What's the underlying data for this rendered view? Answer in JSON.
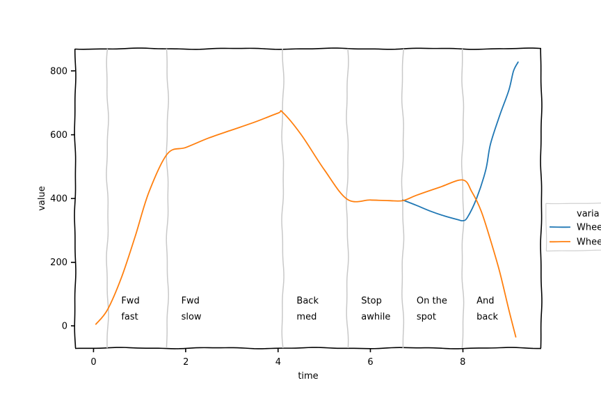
{
  "chart_data": {
    "type": "line",
    "title": "",
    "xlabel": "time",
    "ylabel": "value",
    "xlim": [
      -0.4,
      9.7
    ],
    "ylim": [
      -70,
      870
    ],
    "xticks": [
      0,
      2,
      4,
      6,
      8
    ],
    "xtick_labels": [
      "0",
      "2",
      "4",
      "6",
      "8"
    ],
    "yticks": [
      0,
      200,
      400,
      600,
      800
    ],
    "ytick_labels": [
      "0",
      "200",
      "400",
      "600",
      "800"
    ],
    "grid": false,
    "legend": {
      "placement": "right",
      "title": "varia",
      "entries": [
        "Whee",
        "Whee"
      ]
    },
    "series": [
      {
        "name": "Whee",
        "color": "#1f77b4",
        "x": [
          6.7,
          7.0,
          7.3,
          7.6,
          7.9,
          8.0,
          8.1,
          8.3,
          8.5,
          8.6,
          8.8,
          9.0,
          9.1,
          9.2
        ],
        "y": [
          395,
          378,
          360,
          345,
          333,
          330,
          340,
          400,
          490,
          570,
          660,
          740,
          800,
          828
        ]
      },
      {
        "name": "Whee",
        "color": "#ff7f0e",
        "x": [
          0.05,
          0.3,
          0.6,
          0.9,
          1.2,
          1.6,
          2.0,
          2.5,
          3.0,
          3.5,
          4.0,
          4.1,
          4.5,
          5.0,
          5.5,
          6.0,
          6.4,
          6.7,
          7.0,
          7.5,
          8.0,
          8.2,
          8.4,
          8.6,
          8.8,
          9.0,
          9.15
        ],
        "y": [
          5,
          50,
          150,
          280,
          420,
          540,
          560,
          590,
          615,
          640,
          668,
          670,
          600,
          490,
          397,
          395,
          393,
          393,
          410,
          435,
          458,
          420,
          360,
          270,
          170,
          50,
          -35
        ]
      }
    ],
    "phase_lines_x": [
      0.3,
      1.6,
      4.1,
      5.5,
      6.7,
      8.0
    ],
    "annotations": [
      {
        "line1": "Fwd",
        "line2": "fast",
        "x": 0.6
      },
      {
        "line1": "Fwd",
        "line2": "slow",
        "x": 1.9
      },
      {
        "line1": "Back",
        "line2": "med",
        "x": 4.4
      },
      {
        "line1": "Stop",
        "line2": "awhile",
        "x": 5.8
      },
      {
        "line1": "On the",
        "line2": "spot",
        "x": 7.0
      },
      {
        "line1": "And",
        "line2": "back",
        "x": 8.3
      }
    ],
    "annotation_y_top": 70,
    "annotation_y_bottom": 20
  }
}
